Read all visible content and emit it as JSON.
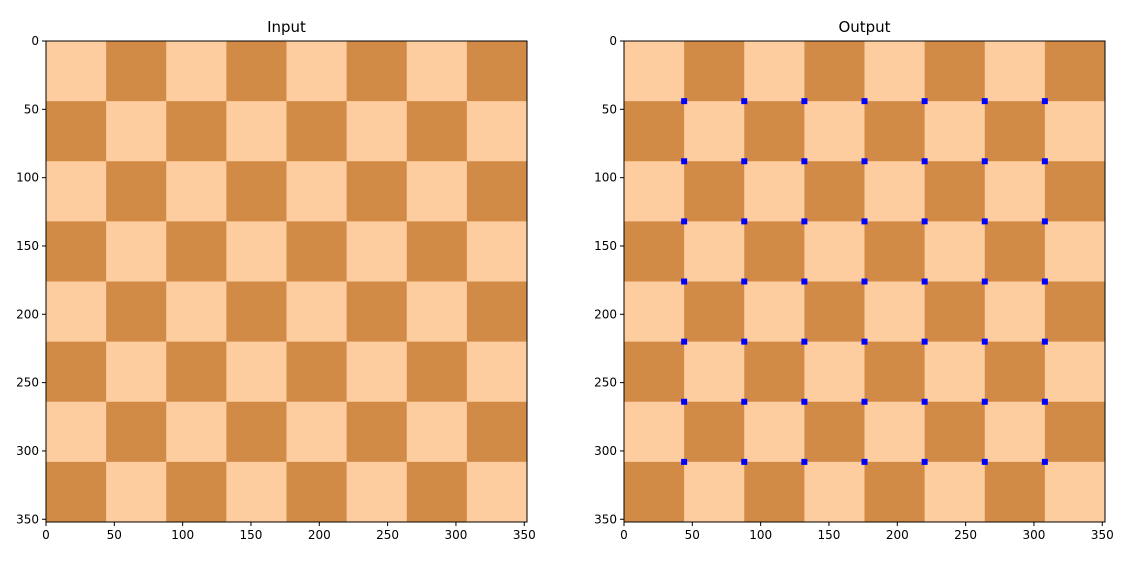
{
  "chart_data": [
    {
      "type": "heatmap",
      "title": "Input",
      "image_size": 352,
      "grid_cells": 8,
      "cell_size": 44,
      "colors": {
        "light": "#FECD9F",
        "dark": "#D28B47"
      },
      "top_left_cell": "light",
      "xlim": [
        0,
        352
      ],
      "ylim": [
        352,
        0
      ],
      "xticks": [
        0,
        50,
        100,
        150,
        200,
        250,
        300,
        350
      ],
      "yticks": [
        0,
        50,
        100,
        150,
        200,
        250,
        300,
        350
      ],
      "xtick_labels": [
        "0",
        "50",
        "100",
        "150",
        "200",
        "250",
        "300",
        "350"
      ],
      "ytick_labels": [
        "0",
        "50",
        "100",
        "150",
        "200",
        "250",
        "300",
        "350"
      ],
      "corner_points": []
    },
    {
      "type": "heatmap",
      "title": "Output",
      "image_size": 352,
      "grid_cells": 8,
      "cell_size": 44,
      "colors": {
        "light": "#FECD9F",
        "dark": "#D28B47",
        "marker": "#0000FF"
      },
      "top_left_cell": "light",
      "xlim": [
        0,
        352
      ],
      "ylim": [
        352,
        0
      ],
      "xticks": [
        0,
        50,
        100,
        150,
        200,
        250,
        300,
        350
      ],
      "yticks": [
        0,
        50,
        100,
        150,
        200,
        250,
        300,
        350
      ],
      "xtick_labels": [
        "0",
        "50",
        "100",
        "150",
        "200",
        "250",
        "300",
        "350"
      ],
      "ytick_labels": [
        "0",
        "50",
        "100",
        "150",
        "200",
        "250",
        "300",
        "350"
      ],
      "corner_points": {
        "x": [
          44,
          88,
          132,
          176,
          220,
          264,
          308
        ],
        "y": [
          44,
          88,
          132,
          176,
          220,
          264,
          308
        ]
      }
    }
  ]
}
